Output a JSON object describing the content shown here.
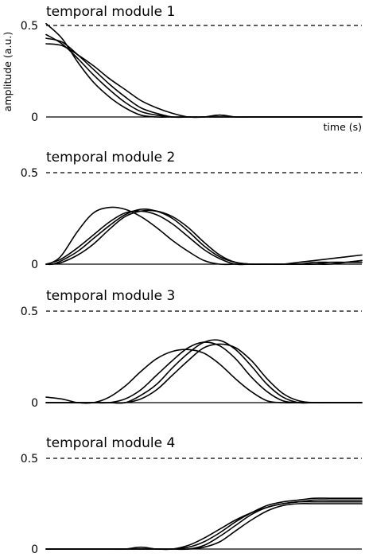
{
  "figure": {
    "ylabel": "amplitude (a.u.)",
    "xlabel": "time (s)"
  },
  "chart_data": [
    {
      "type": "line",
      "title": "temporal module 1",
      "xlabel": "time (s)",
      "ylabel": "amplitude (a.u.)",
      "xlim": [
        0,
        1
      ],
      "ylim": [
        0,
        0.5
      ],
      "yticks": [
        "0.5",
        "0"
      ],
      "reference_line": {
        "y": 0.5,
        "style": "dashed"
      },
      "grid": false,
      "line_color": "#000000",
      "series": [
        {
          "x": [
            0,
            0.05,
            0.1,
            0.15,
            0.2,
            0.25,
            0.3,
            0.35,
            0.4,
            0.45,
            0.5,
            0.55,
            0.6,
            0.65,
            0.7,
            0.75,
            0.8,
            0.85,
            0.9,
            0.95,
            1.0
          ],
          "values": [
            0.51,
            0.43,
            0.3,
            0.19,
            0.11,
            0.05,
            0.01,
            0.0,
            0.0,
            0.0,
            0.0,
            0.0,
            0.0,
            0.0,
            0.0,
            0.0,
            0.0,
            0.0,
            0.0,
            0.0,
            0.0
          ]
        },
        {
          "x": [
            0,
            0.05,
            0.1,
            0.15,
            0.2,
            0.25,
            0.3,
            0.35,
            0.4,
            0.45,
            0.5,
            0.55,
            0.6,
            0.65,
            0.7,
            0.75,
            0.8,
            0.85,
            0.9,
            0.95,
            1.0
          ],
          "values": [
            0.45,
            0.4,
            0.32,
            0.23,
            0.15,
            0.08,
            0.03,
            0.01,
            0.0,
            0.0,
            0.0,
            0.01,
            0.0,
            0.0,
            0.0,
            0.0,
            0.0,
            0.0,
            0.0,
            0.0,
            0.0
          ]
        },
        {
          "x": [
            0,
            0.05,
            0.1,
            0.15,
            0.2,
            0.25,
            0.3,
            0.35,
            0.4,
            0.45,
            0.5,
            0.55,
            0.6,
            0.65,
            0.7,
            0.75,
            0.8,
            0.85,
            0.9,
            0.95,
            1.0
          ],
          "values": [
            0.43,
            0.41,
            0.34,
            0.26,
            0.18,
            0.11,
            0.05,
            0.02,
            0.0,
            0.0,
            0.0,
            0.0,
            0.0,
            0.0,
            0.0,
            0.0,
            0.0,
            0.0,
            0.0,
            0.0,
            0.0
          ]
        },
        {
          "x": [
            0,
            0.05,
            0.1,
            0.15,
            0.2,
            0.25,
            0.3,
            0.35,
            0.4,
            0.45,
            0.5,
            0.55,
            0.6,
            0.65,
            0.7,
            0.75,
            0.8,
            0.85,
            0.9,
            0.95,
            1.0
          ],
          "values": [
            0.4,
            0.39,
            0.34,
            0.28,
            0.21,
            0.15,
            0.09,
            0.05,
            0.02,
            0.0,
            0.0,
            0.01,
            0.0,
            0.0,
            0.0,
            0.0,
            0.0,
            0.0,
            0.0,
            0.0,
            0.0
          ]
        }
      ]
    },
    {
      "type": "line",
      "title": "temporal module 2",
      "xlim": [
        0,
        1
      ],
      "ylim": [
        0,
        0.5
      ],
      "yticks": [
        "0.5",
        "0"
      ],
      "reference_line": {
        "y": 0.5,
        "style": "dashed"
      },
      "grid": false,
      "line_color": "#000000",
      "series": [
        {
          "x": [
            0,
            0.02,
            0.05,
            0.1,
            0.15,
            0.2,
            0.25,
            0.3,
            0.35,
            0.4,
            0.45,
            0.5,
            0.55,
            0.6,
            0.65,
            0.7,
            0.75,
            0.8,
            0.85,
            0.9,
            0.95,
            1.0
          ],
          "values": [
            0.0,
            0.01,
            0.05,
            0.18,
            0.28,
            0.31,
            0.3,
            0.26,
            0.2,
            0.13,
            0.07,
            0.02,
            0.0,
            0.0,
            0.0,
            0.0,
            0.0,
            0.0,
            0.0,
            0.01,
            0.01,
            0.01
          ]
        },
        {
          "x": [
            0,
            0.02,
            0.05,
            0.1,
            0.15,
            0.2,
            0.25,
            0.3,
            0.35,
            0.4,
            0.45,
            0.5,
            0.55,
            0.6,
            0.65,
            0.7,
            0.75,
            0.8,
            0.85,
            0.9,
            0.95,
            1.0
          ],
          "values": [
            0.0,
            0.01,
            0.03,
            0.09,
            0.16,
            0.23,
            0.28,
            0.29,
            0.27,
            0.22,
            0.15,
            0.08,
            0.03,
            0.0,
            0.0,
            0.0,
            0.0,
            0.0,
            0.0,
            0.0,
            0.01,
            0.02
          ]
        },
        {
          "x": [
            0,
            0.02,
            0.05,
            0.1,
            0.15,
            0.2,
            0.25,
            0.3,
            0.35,
            0.4,
            0.45,
            0.5,
            0.55,
            0.6,
            0.65,
            0.7,
            0.75,
            0.8,
            0.85,
            0.9,
            0.95,
            1.0
          ],
          "values": [
            0.0,
            0.0,
            0.02,
            0.07,
            0.14,
            0.21,
            0.27,
            0.3,
            0.29,
            0.25,
            0.18,
            0.1,
            0.04,
            0.01,
            0.0,
            0.0,
            0.0,
            0.01,
            0.02,
            0.03,
            0.04,
            0.05
          ]
        },
        {
          "x": [
            0,
            0.02,
            0.05,
            0.1,
            0.15,
            0.2,
            0.25,
            0.3,
            0.35,
            0.4,
            0.45,
            0.5,
            0.55,
            0.6,
            0.65,
            0.7,
            0.75,
            0.8,
            0.85,
            0.9,
            0.95,
            1.0
          ],
          "values": [
            0.0,
            0.0,
            0.01,
            0.05,
            0.11,
            0.19,
            0.26,
            0.29,
            0.29,
            0.26,
            0.2,
            0.12,
            0.05,
            0.01,
            0.0,
            0.0,
            0.0,
            0.0,
            0.01,
            0.01,
            0.01,
            0.02
          ]
        }
      ]
    },
    {
      "type": "line",
      "title": "temporal module 3",
      "xlim": [
        0,
        1
      ],
      "ylim": [
        0,
        0.5
      ],
      "yticks": [
        "0.5",
        "0"
      ],
      "reference_line": {
        "y": 0.5,
        "style": "dashed"
      },
      "grid": false,
      "line_color": "#000000",
      "series": [
        {
          "x": [
            0,
            0.05,
            0.1,
            0.15,
            0.2,
            0.25,
            0.3,
            0.35,
            0.4,
            0.45,
            0.5,
            0.55,
            0.6,
            0.65,
            0.7,
            0.75,
            0.8,
            0.85,
            0.9,
            0.95,
            1.0
          ],
          "values": [
            0.03,
            0.02,
            0.0,
            0.0,
            0.03,
            0.09,
            0.17,
            0.24,
            0.28,
            0.29,
            0.27,
            0.21,
            0.13,
            0.06,
            0.01,
            0.0,
            0.0,
            0.0,
            0.0,
            0.0,
            0.0
          ]
        },
        {
          "x": [
            0,
            0.05,
            0.1,
            0.15,
            0.2,
            0.25,
            0.3,
            0.35,
            0.4,
            0.45,
            0.5,
            0.55,
            0.6,
            0.65,
            0.7,
            0.75,
            0.8,
            0.85,
            0.9,
            0.95,
            1.0
          ],
          "values": [
            0.0,
            0.0,
            0.0,
            0.0,
            0.0,
            0.02,
            0.07,
            0.15,
            0.23,
            0.3,
            0.33,
            0.31,
            0.24,
            0.14,
            0.06,
            0.01,
            0.0,
            0.0,
            0.0,
            0.0,
            0.0
          ]
        },
        {
          "x": [
            0,
            0.05,
            0.1,
            0.15,
            0.2,
            0.25,
            0.3,
            0.35,
            0.4,
            0.45,
            0.5,
            0.55,
            0.6,
            0.65,
            0.7,
            0.75,
            0.8,
            0.85,
            0.9,
            0.95,
            1.0
          ],
          "values": [
            0.0,
            0.0,
            0.0,
            0.0,
            0.0,
            0.0,
            0.04,
            0.1,
            0.19,
            0.27,
            0.33,
            0.34,
            0.29,
            0.2,
            0.1,
            0.03,
            0.0,
            0.0,
            0.0,
            0.0,
            0.0
          ]
        },
        {
          "x": [
            0,
            0.05,
            0.1,
            0.15,
            0.2,
            0.25,
            0.3,
            0.35,
            0.4,
            0.45,
            0.5,
            0.55,
            0.6,
            0.65,
            0.7,
            0.75,
            0.8,
            0.85,
            0.9,
            0.95,
            1.0
          ],
          "values": [
            0.0,
            0.0,
            0.0,
            0.0,
            0.0,
            0.0,
            0.02,
            0.07,
            0.15,
            0.23,
            0.3,
            0.32,
            0.3,
            0.23,
            0.13,
            0.05,
            0.01,
            0.0,
            0.0,
            0.0,
            0.0
          ]
        }
      ]
    },
    {
      "type": "line",
      "title": "temporal module 4",
      "xlim": [
        0,
        1
      ],
      "ylim": [
        0,
        0.5
      ],
      "yticks": [
        "0.5",
        "0"
      ],
      "reference_line": {
        "y": 0.5,
        "style": "dashed"
      },
      "grid": false,
      "line_color": "#000000",
      "series": [
        {
          "x": [
            0,
            0.05,
            0.1,
            0.15,
            0.2,
            0.25,
            0.3,
            0.35,
            0.4,
            0.45,
            0.5,
            0.55,
            0.6,
            0.65,
            0.7,
            0.75,
            0.8,
            0.85,
            0.9,
            0.95,
            1.0
          ],
          "values": [
            0.0,
            0.0,
            0.0,
            0.0,
            0.0,
            0.0,
            0.01,
            0.0,
            0.0,
            0.02,
            0.06,
            0.11,
            0.16,
            0.2,
            0.23,
            0.25,
            0.26,
            0.26,
            0.26,
            0.26,
            0.26
          ]
        },
        {
          "x": [
            0,
            0.05,
            0.1,
            0.15,
            0.2,
            0.25,
            0.3,
            0.35,
            0.4,
            0.45,
            0.5,
            0.55,
            0.6,
            0.65,
            0.7,
            0.75,
            0.8,
            0.85,
            0.9,
            0.95,
            1.0
          ],
          "values": [
            0.0,
            0.0,
            0.0,
            0.0,
            0.0,
            0.0,
            0.0,
            0.0,
            0.0,
            0.01,
            0.04,
            0.09,
            0.15,
            0.2,
            0.24,
            0.26,
            0.27,
            0.28,
            0.28,
            0.28,
            0.28
          ]
        },
        {
          "x": [
            0,
            0.05,
            0.1,
            0.15,
            0.2,
            0.25,
            0.3,
            0.35,
            0.4,
            0.45,
            0.5,
            0.55,
            0.6,
            0.65,
            0.7,
            0.75,
            0.8,
            0.85,
            0.9,
            0.95,
            1.0
          ],
          "values": [
            0.0,
            0.0,
            0.0,
            0.0,
            0.0,
            0.0,
            0.0,
            0.0,
            0.0,
            0.0,
            0.02,
            0.07,
            0.13,
            0.19,
            0.23,
            0.25,
            0.26,
            0.27,
            0.27,
            0.27,
            0.27
          ]
        },
        {
          "x": [
            0,
            0.05,
            0.1,
            0.15,
            0.2,
            0.25,
            0.3,
            0.35,
            0.4,
            0.45,
            0.5,
            0.55,
            0.6,
            0.65,
            0.7,
            0.75,
            0.8,
            0.85,
            0.9,
            0.95,
            1.0
          ],
          "values": [
            0.0,
            0.0,
            0.0,
            0.0,
            0.0,
            0.0,
            0.0,
            0.0,
            0.0,
            0.0,
            0.01,
            0.04,
            0.1,
            0.16,
            0.21,
            0.24,
            0.25,
            0.25,
            0.25,
            0.25,
            0.25
          ]
        }
      ]
    }
  ]
}
